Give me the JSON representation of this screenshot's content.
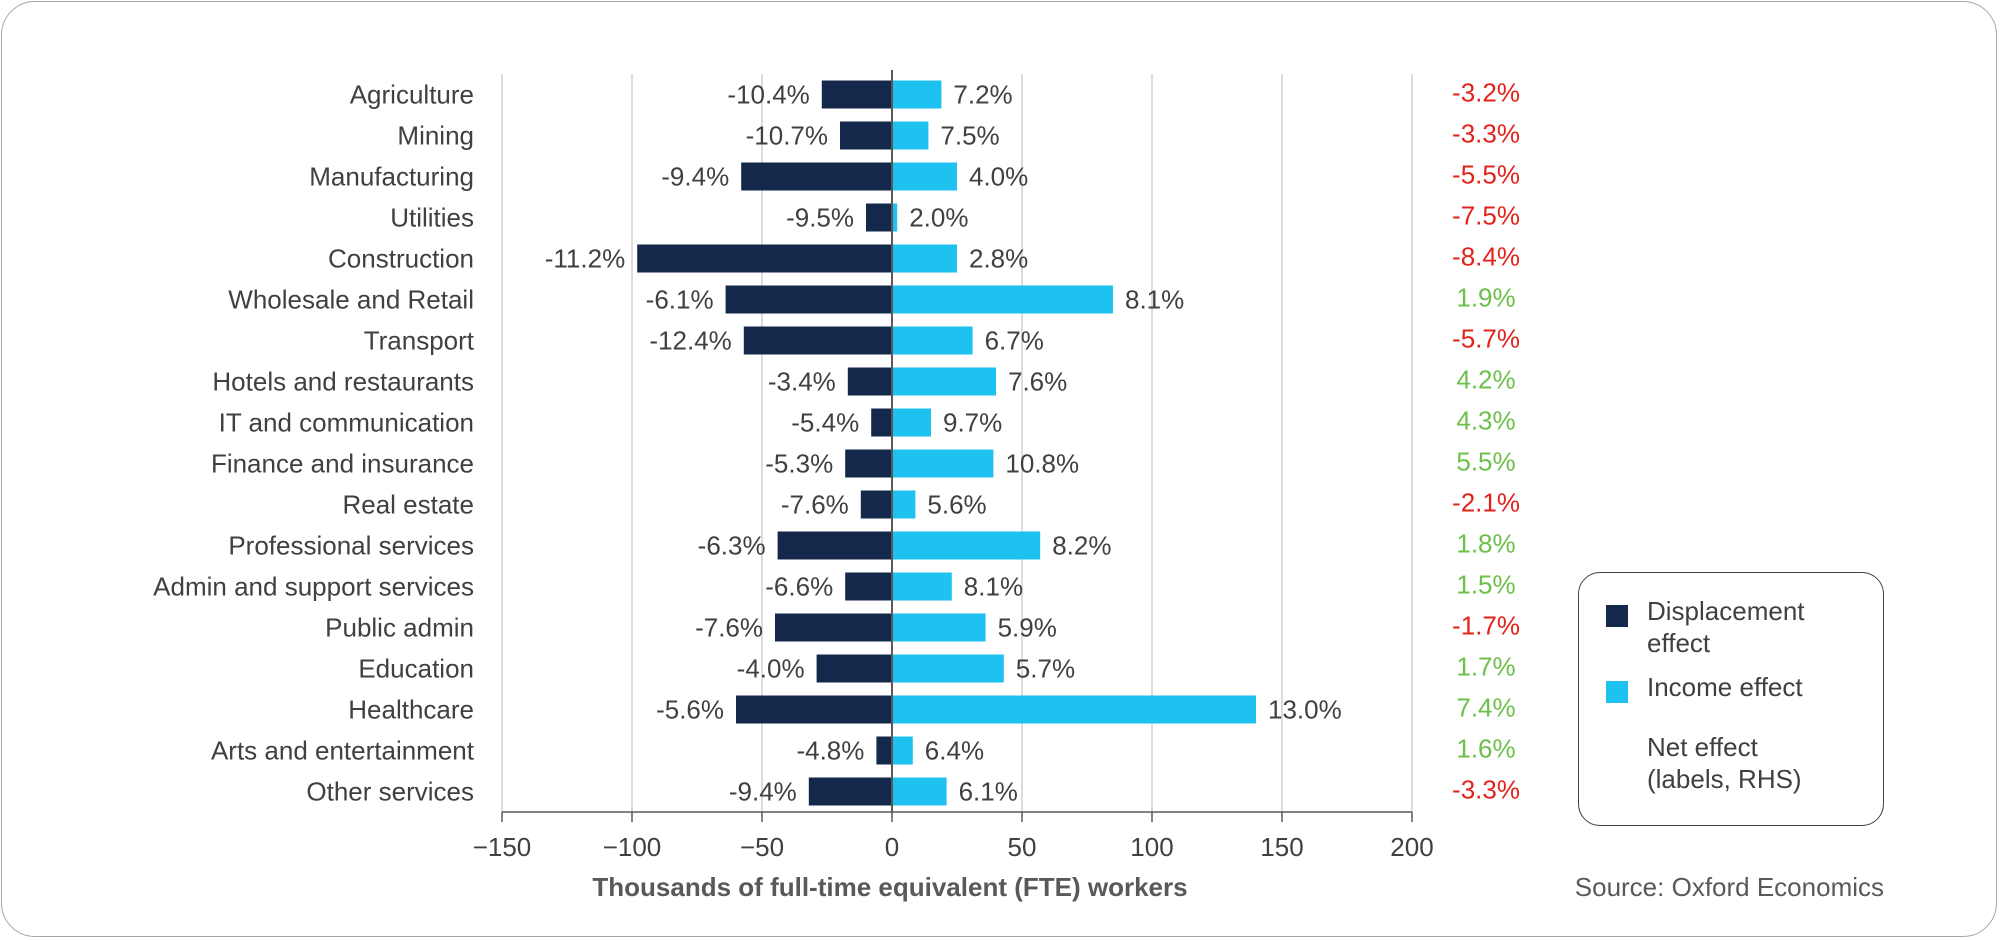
{
  "chart_data": {
    "type": "bar",
    "orientation": "horizontal",
    "categories": [
      "Agriculture",
      "Mining",
      "Manufacturing",
      "Utilities",
      "Construction",
      "Wholesale and Retail",
      "Transport",
      "Hotels and restaurants",
      "IT and communication",
      "Finance and insurance",
      "Real estate",
      "Professional services",
      "Admin and support services",
      "Public admin",
      "Education",
      "Healthcare",
      "Arts and entertainment",
      "Other services"
    ],
    "series": [
      {
        "name": "Displacement effect",
        "color": "#14284b",
        "values": [
          -27,
          -20,
          -58,
          -10,
          -98,
          -64,
          -57,
          -17,
          -8,
          -18,
          -12,
          -44,
          -18,
          -45,
          -29,
          -60,
          -6,
          -32
        ],
        "labels": [
          "-10.4%",
          "-10.7%",
          "-9.4%",
          "-9.5%",
          "-11.2%",
          "-6.1%",
          "-12.4%",
          "-3.4%",
          "-5.4%",
          "-5.3%",
          "-7.6%",
          "-6.3%",
          "-6.6%",
          "-7.6%",
          "-4.0%",
          "-5.6%",
          "-4.8%",
          "-9.4%"
        ]
      },
      {
        "name": "Income effect",
        "color": "#1ec2f0",
        "values": [
          19,
          14,
          25,
          2,
          25,
          85,
          31,
          40,
          15,
          39,
          9,
          57,
          23,
          36,
          43,
          140,
          8,
          21
        ],
        "labels": [
          "7.2%",
          "7.5%",
          "4.0%",
          "2.0%",
          "2.8%",
          "8.1%",
          "6.7%",
          "7.6%",
          "9.7%",
          "10.8%",
          "5.6%",
          "8.2%",
          "8.1%",
          "5.9%",
          "5.7%",
          "13.0%",
          "6.4%",
          "6.1%"
        ]
      }
    ],
    "net_effect": {
      "name": "Net effect (labels, RHS)",
      "labels": [
        "-3.2%",
        "-3.3%",
        "-5.5%",
        "-7.5%",
        "-8.4%",
        "1.9%",
        "-5.7%",
        "4.2%",
        "4.3%",
        "5.5%",
        "-2.1%",
        "1.8%",
        "1.5%",
        "-1.7%",
        "1.7%",
        "7.4%",
        "1.6%",
        "-3.3%"
      ],
      "positive_color": "#6cc04a",
      "negative_color": "#e2231a"
    },
    "xlim": [
      -150,
      200
    ],
    "xticks": [
      -150,
      -100,
      -50,
      0,
      50,
      100,
      150,
      200
    ],
    "xtick_labels": [
      "−150",
      "−100",
      "−50",
      "0",
      "50",
      "100",
      "150",
      "200"
    ],
    "xlabel": "Thousands of full-time equivalent (FTE) workers",
    "grid": true,
    "legend_position": "bottom-right"
  },
  "legend": {
    "displacement_label_line1": "Displacement",
    "displacement_label_line2": "effect",
    "income_label": "Income effect",
    "net_label_line1": "Net effect",
    "net_label_line2": "(labels, RHS)"
  },
  "source": "Source: Oxford Economics"
}
